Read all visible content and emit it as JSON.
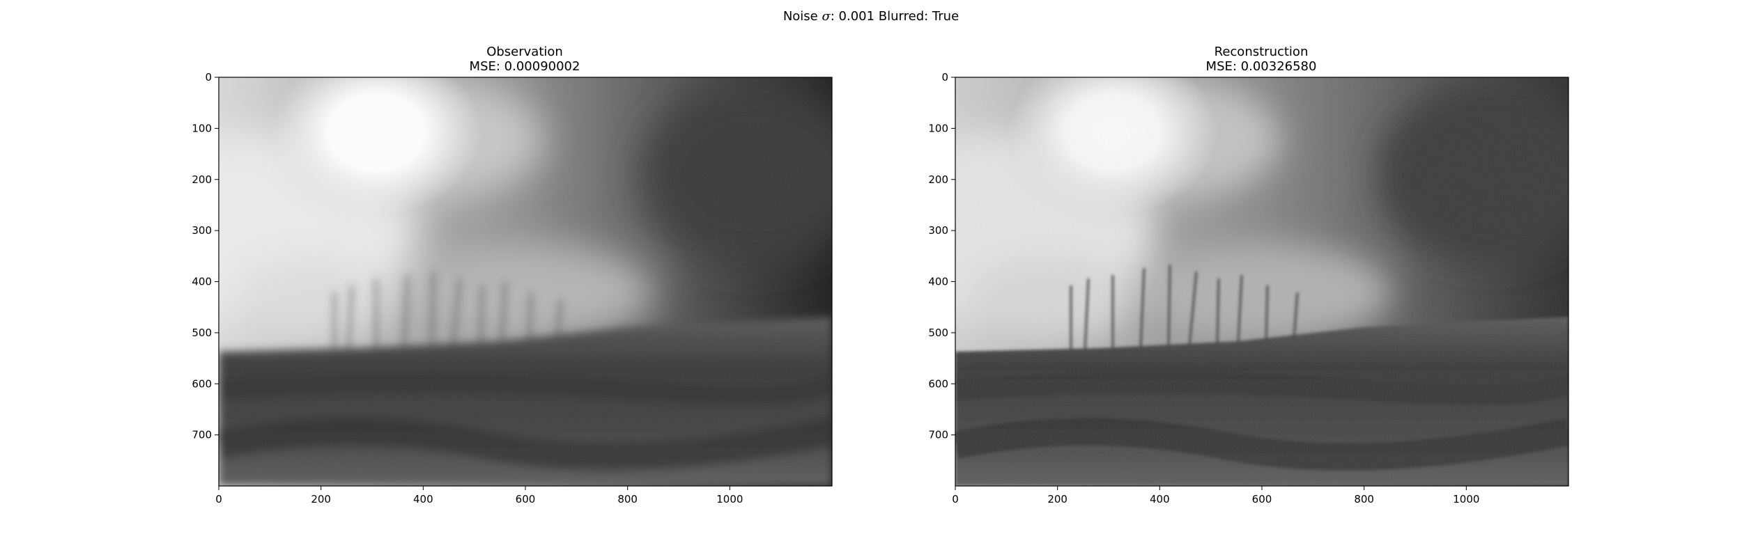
{
  "figure": {
    "suptitle_prefix": "Noise ",
    "suptitle_sigma": "σ",
    "suptitle_rest": ": 0.001 Blurred: True"
  },
  "chart_data": [
    {
      "type": "image",
      "title_line1": "Observation",
      "title_line2": "MSE: 0.00090002",
      "xlim": [
        0,
        1200
      ],
      "ylim": [
        800,
        0
      ],
      "xticks": [
        0,
        200,
        400,
        600,
        800,
        1000
      ],
      "yticks": [
        0,
        100,
        200,
        300,
        400,
        500,
        600,
        700
      ],
      "colormap": "gray",
      "grid": false
    },
    {
      "type": "image",
      "title_line1": "Reconstruction",
      "title_line2": "MSE: 0.00326580",
      "xlim": [
        0,
        1200
      ],
      "ylim": [
        800,
        0
      ],
      "xticks": [
        0,
        200,
        400,
        600,
        800,
        1000
      ],
      "yticks": [
        0,
        100,
        200,
        300,
        400,
        500,
        600,
        700
      ],
      "colormap": "gray",
      "grid": false
    }
  ]
}
